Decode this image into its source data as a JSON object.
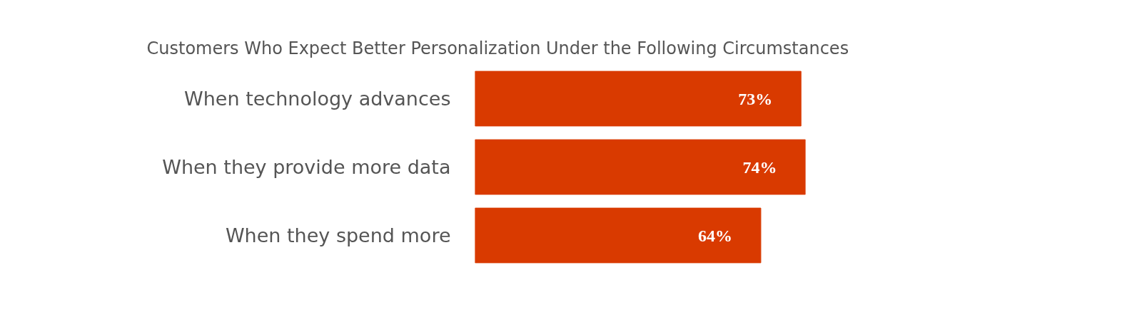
{
  "chart_data": {
    "type": "bar",
    "orientation": "horizontal",
    "title": "Customers Who Expect Better Personalization Under the Following Circumstances",
    "categories": [
      "When technology advances",
      "When they provide more data",
      "When they spend more"
    ],
    "values": [
      73,
      74,
      64
    ],
    "value_labels": [
      "73%",
      "74%",
      "64%"
    ],
    "color": "#d93a00"
  }
}
